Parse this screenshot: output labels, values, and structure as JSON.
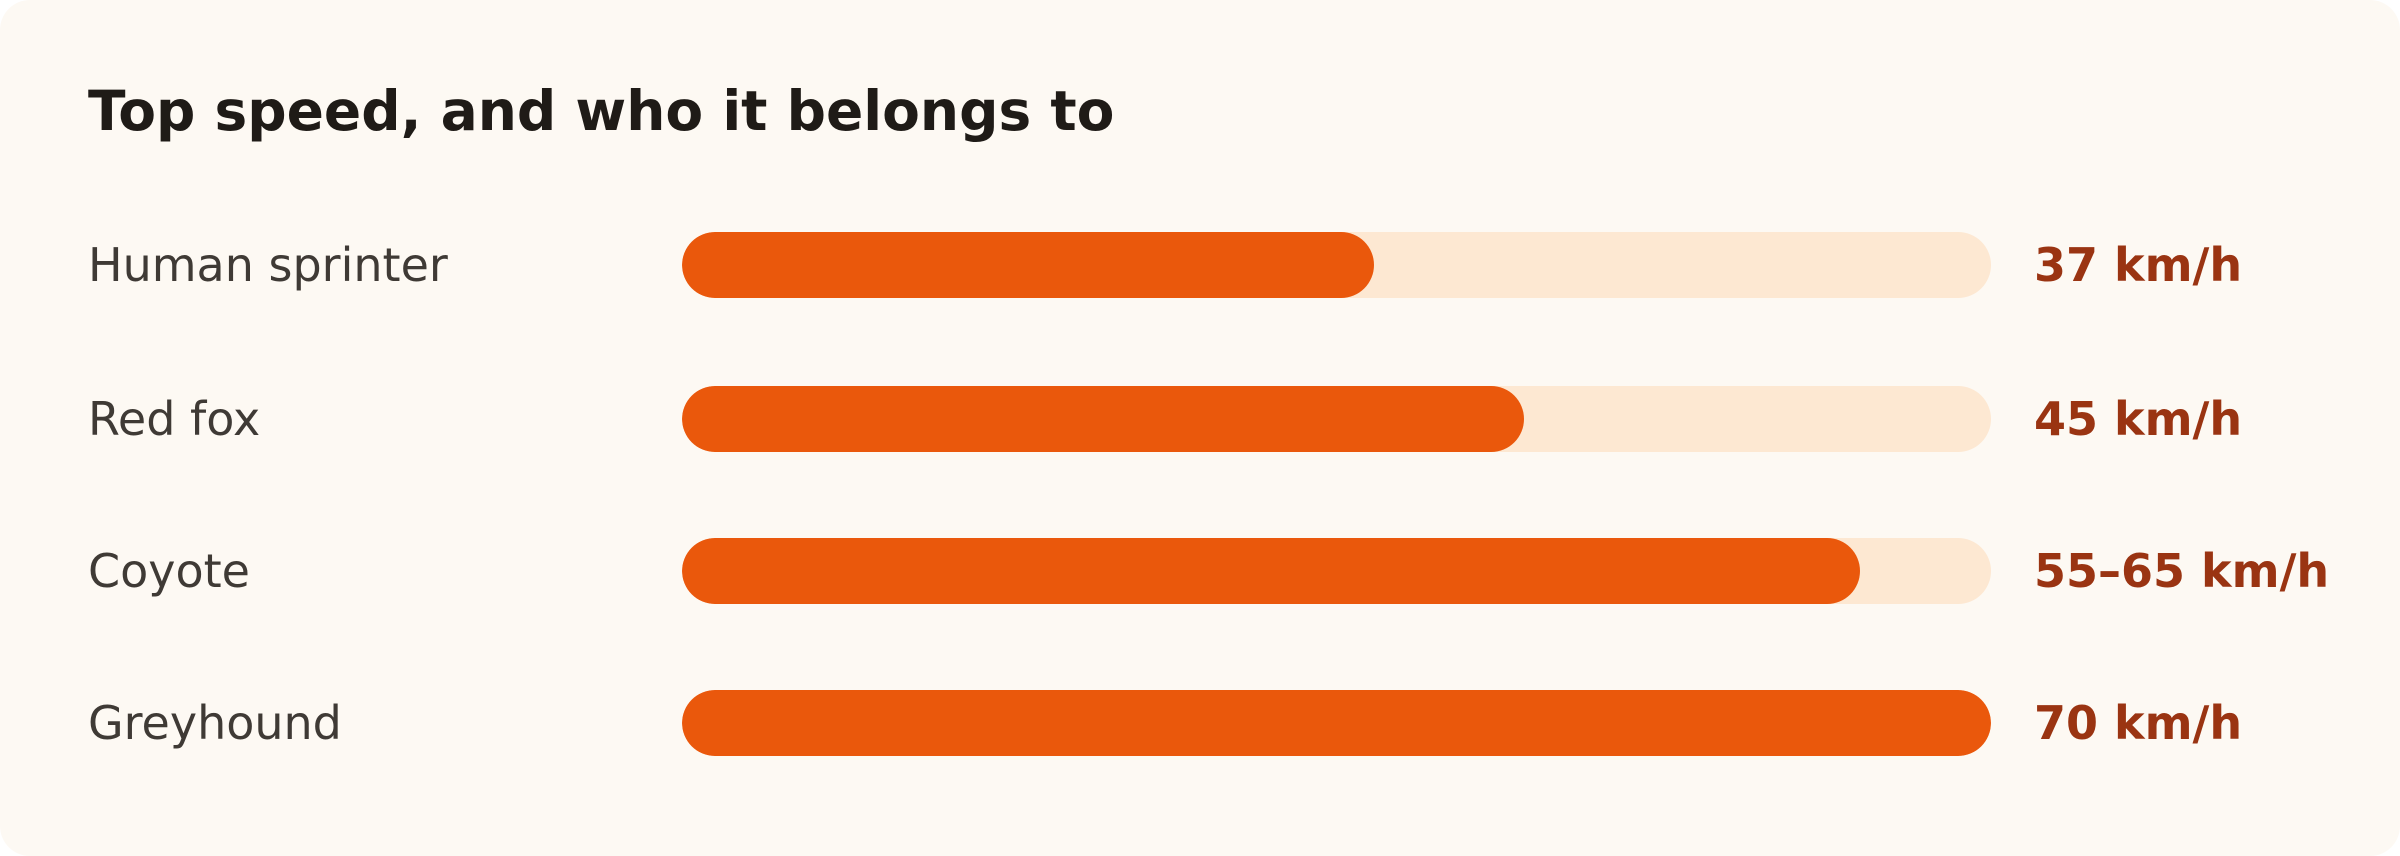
{
  "colors": {
    "card_background": "#fdf9f3",
    "track": "#fde8d2",
    "bar": "#ea580c",
    "value_text": "#9a3412",
    "title_text": "#1f1b17",
    "label_text": "#3f3a35"
  },
  "chart_data": {
    "type": "bar",
    "orientation": "horizontal",
    "title": "Top speed, and who it belongs to",
    "categories": [
      "Human sprinter",
      "Red fox",
      "Coyote",
      "Greyhound"
    ],
    "values": [
      37,
      45,
      63,
      70
    ],
    "value_labels": [
      "37 km/h",
      "45 km/h",
      "55–65 km/h",
      "70 km/h"
    ],
    "unit": "km/h",
    "xlim": [
      0,
      70
    ],
    "grid": false,
    "legend": "none"
  }
}
